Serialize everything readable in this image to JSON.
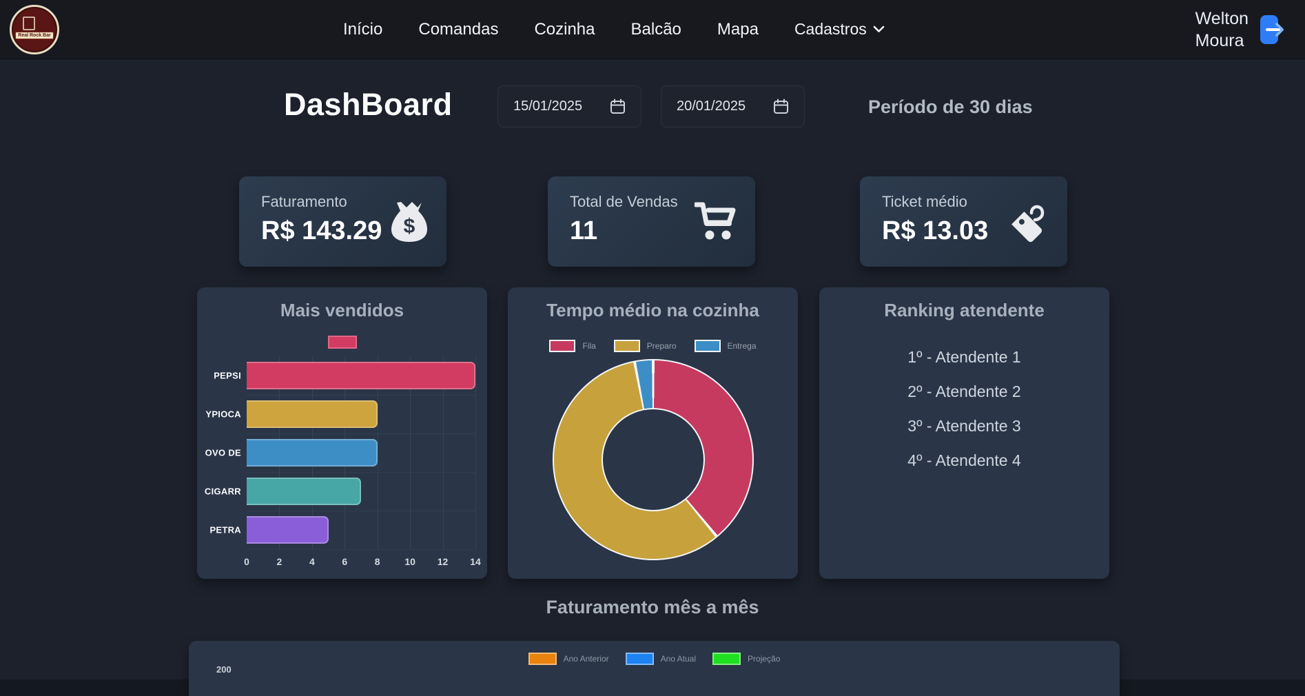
{
  "navbar": {
    "logo_text": "Real Rock Bar",
    "links": [
      "Início",
      "Comandas",
      "Cozinha",
      "Balcão",
      "Mapa"
    ],
    "dropdown_label": "Cadastros",
    "user": {
      "first_name": "Welton",
      "last_name": "Moura"
    }
  },
  "header": {
    "title": "DashBoard",
    "date_start": "15/01/2025",
    "date_end": "20/01/2025",
    "period": "Período de 30 dias"
  },
  "stats": [
    {
      "label": "Faturamento",
      "value": "R$ 143.29",
      "icon": "money-bag-icon"
    },
    {
      "label": "Total de Vendas",
      "value": "11",
      "icon": "cart-icon"
    },
    {
      "label": "Ticket médio",
      "value": "R$ 13.03",
      "icon": "tag-icon"
    }
  ],
  "ranking": {
    "title": "Ranking atendente",
    "items": [
      "1º - Atendente 1",
      "2º - Atendente 2",
      "3º - Atendente 3",
      "4º - Atendente 4"
    ]
  },
  "chart_data": [
    {
      "type": "bar",
      "orientation": "horizontal",
      "title": "Mais vendidos",
      "categories": [
        "PEPSI",
        "YPIOCA",
        "OVO DE",
        "CIGARR",
        "PETRA"
      ],
      "values": [
        14,
        8,
        8,
        7,
        5
      ],
      "bar_colors": [
        "#d23b62",
        "#cda43d",
        "#3e8ec6",
        "#47a6a6",
        "#8b5ed9"
      ],
      "xlim": [
        0,
        14
      ],
      "xticks": [
        0,
        2,
        4,
        6,
        8,
        10,
        12,
        14
      ],
      "grid": true,
      "legend": {
        "label": "",
        "color": "#d23b62",
        "position": "top"
      }
    },
    {
      "type": "pie",
      "style": "doughnut",
      "title": "Tempo médio na cozinha",
      "labels": [
        "Fila",
        "Preparo",
        "Entrega"
      ],
      "values_pct": [
        39,
        58,
        3
      ],
      "colors": [
        "#c63a60",
        "#c7a13c",
        "#3d8ec6"
      ],
      "legend_position": "top",
      "start_angle_deg": 0,
      "direction": "clockwise"
    },
    {
      "type": "bar",
      "title": "Faturamento mês a mês",
      "cropped": true,
      "series": [
        {
          "name": "Ano Anterior",
          "color": "#e8830d"
        },
        {
          "name": "Ano Atual",
          "color": "#1d82f2"
        },
        {
          "name": "Projeção",
          "color": "#20df20"
        }
      ],
      "visible_ytick": "200",
      "legend_position": "top"
    }
  ],
  "colors": {
    "navbar_bg": "#17191f",
    "page_bg": "#1c212c",
    "panel_bg": "#2a3547",
    "card_bg_light": "#2e3c50",
    "logout_blue": "#2f7df6",
    "accent_pink": "#d23b62",
    "accent_gold": "#cda43d",
    "accent_blue": "#3e8ec6"
  }
}
